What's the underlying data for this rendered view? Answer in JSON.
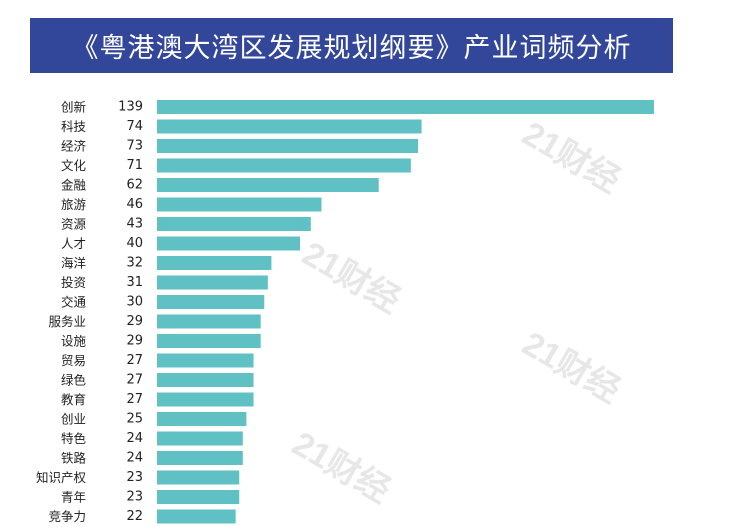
{
  "title": "《粤港澳大湾区发展规划纲要》产业词频分析",
  "watermark_text": "21财经",
  "colors": {
    "title_bg": "#33479a",
    "bar": "#5fc1c3"
  },
  "chart_data": {
    "type": "bar",
    "orientation": "horizontal",
    "title": "《粤港澳大湾区发展规划纲要》产业词频分析",
    "xlabel": "",
    "ylabel": "",
    "categories": [
      "创新",
      "科技",
      "经济",
      "文化",
      "金融",
      "旅游",
      "资源",
      "人才",
      "海洋",
      "投资",
      "交通",
      "服务业",
      "设施",
      "贸易",
      "绿色",
      "教育",
      "创业",
      "特色",
      "铁路",
      "知识产权",
      "青年",
      "竞争力"
    ],
    "values": [
      139,
      74,
      73,
      71,
      62,
      46,
      43,
      40,
      32,
      31,
      30,
      29,
      29,
      27,
      27,
      27,
      25,
      24,
      24,
      23,
      23,
      22
    ],
    "xlim": [
      0,
      139
    ],
    "grid": false,
    "legend": "none"
  }
}
